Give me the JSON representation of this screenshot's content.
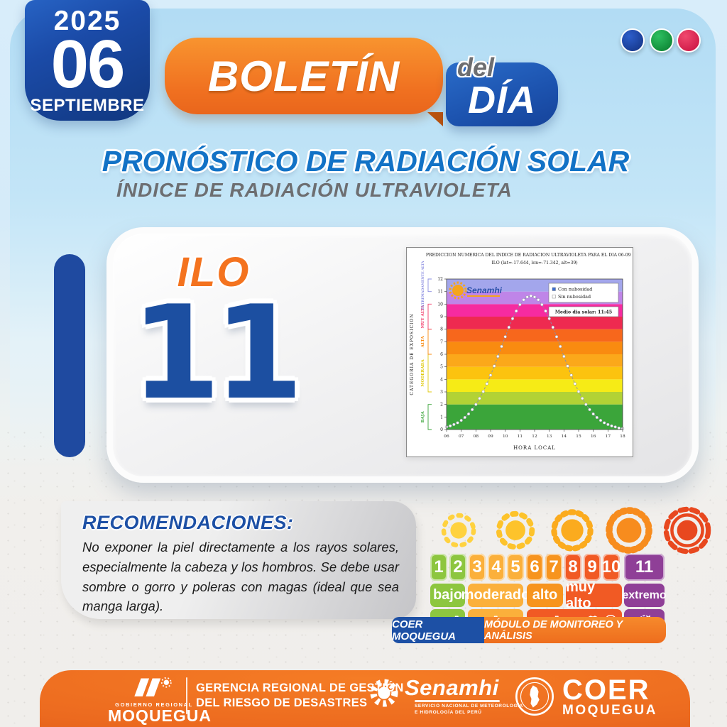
{
  "date_badge": {
    "year": "2025",
    "day": "06",
    "month": "SEPTIEMBRE"
  },
  "header": {
    "boletin": "BOLETÍN",
    "del": "del",
    "dia": "DÍA"
  },
  "decor_dots": [
    {
      "name": "blue",
      "color": "#1a3fa8"
    },
    {
      "name": "green",
      "color": "#0e9c3c"
    },
    {
      "name": "red",
      "color": "#e11a4e"
    }
  ],
  "title": {
    "main": "PRONÓSTICO DE RADIACIÓN SOLAR",
    "subtitle": "ÍNDICE DE RADIACIÓN ULTRAVIOLETA"
  },
  "station": {
    "name": "ILO",
    "uv_index": "11"
  },
  "chart_data": {
    "type": "line",
    "title_line1": "PREDICCION NUMERICA DEL INDICE DE RADIACION ULTRAVIOLETA PARA EL DIA 06-09-2025",
    "title_line2": "ILO (lat=-17.644, lon=-71.342, alt=39)",
    "xlabel": "HORA LOCAL",
    "ylabel": "CATEGORIA DE EXPOSICION",
    "watermark": "Senamhi",
    "xlim": [
      6,
      18
    ],
    "ylim": [
      0,
      12
    ],
    "xticks": [
      "06",
      "07",
      "08",
      "09",
      "10",
      "11",
      "12",
      "13",
      "14",
      "15",
      "16",
      "17",
      "18"
    ],
    "yticks": [
      0,
      1,
      2,
      3,
      4,
      5,
      6,
      7,
      8,
      9,
      10,
      11,
      12
    ],
    "grid": false,
    "legend_position": "top-right",
    "legend": [
      {
        "label": "Con nubosidad",
        "marker": "#3c6fd1"
      },
      {
        "label": "Sin nubosidad",
        "marker": "#ffffff"
      }
    ],
    "noon_label": "Medio dia solar: 11:45",
    "bands": [
      {
        "from": 0,
        "to": 2,
        "color": "#3ba53a"
      },
      {
        "from": 2,
        "to": 3,
        "color": "#b2d235"
      },
      {
        "from": 3,
        "to": 4,
        "color": "#f6eb16"
      },
      {
        "from": 4,
        "to": 5,
        "color": "#fcc30f"
      },
      {
        "from": 5,
        "to": 6,
        "color": "#fba81a"
      },
      {
        "from": 6,
        "to": 7,
        "color": "#f98b10"
      },
      {
        "from": 7,
        "to": 8,
        "color": "#f7671c"
      },
      {
        "from": 8,
        "to": 9,
        "color": "#ee2a50"
      },
      {
        "from": 9,
        "to": 10,
        "color": "#f62ba0"
      },
      {
        "from": 10,
        "to": 11,
        "color": "#bf85e8"
      },
      {
        "from": 11,
        "to": 12,
        "color": "#a3a6ec"
      }
    ],
    "categories": [
      {
        "label": "BAJA",
        "from": 0,
        "to": 2,
        "color": "#3ba53a"
      },
      {
        "label": "MODERADA",
        "from": 3,
        "to": 6,
        "color": "#e0ca10"
      },
      {
        "label": "ALTA",
        "from": 6,
        "to": 8,
        "color": "#f98b10"
      },
      {
        "label": "MUY ALTA",
        "from": 8,
        "to": 10,
        "color": "#f23a68"
      },
      {
        "label": "EXTREMADAMENTE ALTA",
        "from": 11,
        "to": 12,
        "color": "#8a8ce0"
      }
    ],
    "series": [
      {
        "name": "Sin nubosidad",
        "points": [
          [
            6,
            0.21
          ],
          [
            6.25,
            0.29
          ],
          [
            6.5,
            0.4
          ],
          [
            6.75,
            0.54
          ],
          [
            7,
            0.73
          ],
          [
            7.25,
            0.96
          ],
          [
            7.5,
            1.24
          ],
          [
            7.75,
            1.59
          ],
          [
            8,
            2.0
          ],
          [
            8.25,
            2.48
          ],
          [
            8.5,
            3.03
          ],
          [
            8.75,
            3.65
          ],
          [
            9,
            4.33
          ],
          [
            9.25,
            5.06
          ],
          [
            9.5,
            5.83
          ],
          [
            9.75,
            6.62
          ],
          [
            10,
            7.4
          ],
          [
            10.25,
            8.15
          ],
          [
            10.5,
            8.84
          ],
          [
            10.75,
            9.45
          ],
          [
            11,
            9.96
          ],
          [
            11.25,
            10.34
          ],
          [
            11.5,
            10.57
          ],
          [
            11.75,
            10.65
          ],
          [
            12,
            10.57
          ],
          [
            12.25,
            10.34
          ],
          [
            12.5,
            9.96
          ],
          [
            12.75,
            9.45
          ],
          [
            13,
            8.84
          ],
          [
            13.25,
            8.15
          ],
          [
            13.5,
            7.4
          ],
          [
            13.75,
            6.62
          ],
          [
            14,
            5.83
          ],
          [
            14.25,
            5.06
          ],
          [
            14.5,
            4.33
          ],
          [
            14.75,
            3.65
          ],
          [
            15,
            3.03
          ],
          [
            15.25,
            2.48
          ],
          [
            15.5,
            2.0
          ],
          [
            15.75,
            1.59
          ],
          [
            16,
            1.24
          ],
          [
            16.25,
            0.96
          ],
          [
            16.5,
            0.73
          ],
          [
            16.75,
            0.54
          ],
          [
            17,
            0.4
          ],
          [
            17.25,
            0.29
          ],
          [
            17.5,
            0.21
          ],
          [
            17.75,
            0.12
          ],
          [
            18,
            0.08
          ]
        ]
      }
    ]
  },
  "recommendations": {
    "title": "RECOMENDACIONES:",
    "body": "No exponer la piel directamente a los rayos solares, especialmente la cabeza y los hombros. Se debe usar sombre o gorro y poleras con magas (ideal que sea manga larga)."
  },
  "uv_scale": {
    "suns": [
      {
        "name": "sun-low",
        "color": "#ffd23f"
      },
      {
        "name": "sun-moderate",
        "color": "#fdc32b"
      },
      {
        "name": "sun-high",
        "color": "#fbab1e"
      },
      {
        "name": "sun-very-high",
        "color": "#f78c1e"
      },
      {
        "name": "sun-extreme",
        "color": "#e8481f"
      }
    ],
    "numbers": [
      {
        "value": "1",
        "color": "#8dc63f"
      },
      {
        "value": "2",
        "color": "#8dc63f"
      },
      {
        "value": "3",
        "color": "#fbb03b"
      },
      {
        "value": "4",
        "color": "#fbb03b"
      },
      {
        "value": "5",
        "color": "#fbb03b"
      },
      {
        "value": "6",
        "color": "#f7941e"
      },
      {
        "value": "7",
        "color": "#f7941e"
      },
      {
        "value": "8",
        "color": "#f15a24"
      },
      {
        "value": "9",
        "color": "#f15a24"
      },
      {
        "value": "10",
        "color": "#f15a24"
      },
      {
        "value": "11",
        "color": "#8f3f97"
      }
    ],
    "levels": [
      {
        "label": "bajo",
        "color": "#8dc63f"
      },
      {
        "label": "moderado",
        "color": "#fbb03b"
      },
      {
        "label": "alto",
        "color": "#f7941e"
      },
      {
        "label": "muy alto",
        "color": "#f15a24"
      },
      {
        "label": "extremo",
        "color": "#8f3f97"
      }
    ]
  },
  "monitor_badge": {
    "left": "COER MOQUEGUA",
    "right": "MÓDULO DE MONITOREO Y ANÁLISIS"
  },
  "footer": {
    "gore_top": "GOBIERNO REGIONAL",
    "gore_name": "MOQUEGUA",
    "gerencia_line1": "GERENCIA REGIONAL DE GESTIÓN",
    "gerencia_line2": "DEL RIESGO DE DESASTRES",
    "senamhi_name": "Senamhi",
    "senamhi_sub1": "SERVICIO NACIONAL DE METEOROLOGÍA",
    "senamhi_sub2": "E HIDROLOGÍA DEL PERÚ",
    "coer_name": "COER",
    "coer_sub": "MOQUEGUA"
  }
}
